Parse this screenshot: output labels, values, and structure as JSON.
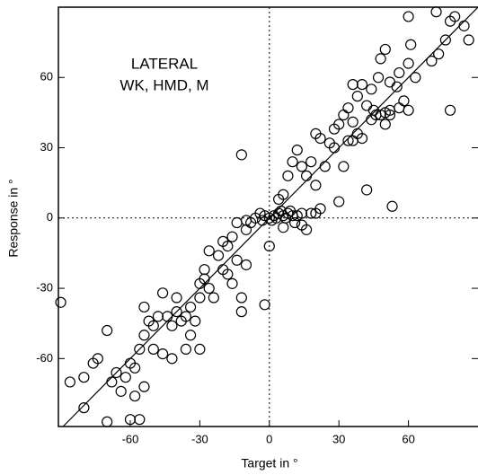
{
  "chart_data": {
    "type": "scatter",
    "annotation": [
      "LATERAL",
      "WK, HMD, M"
    ],
    "xlabel": "Target in °",
    "ylabel": "Response in °",
    "xlim": [
      -91,
      90
    ],
    "ylim": [
      -89,
      90
    ],
    "xticks": [
      -60,
      -30,
      0,
      30,
      60
    ],
    "yticks": [
      -60,
      -30,
      0,
      30,
      60
    ],
    "color": "#000000",
    "series": [
      {
        "x": [
          60,
          72,
          78,
          80,
          84,
          86,
          76,
          73,
          70,
          60,
          61,
          63,
          56,
          50,
          48,
          52,
          55,
          47,
          44,
          40,
          36,
          38,
          42,
          45,
          48,
          50,
          52,
          56,
          58,
          44,
          46,
          34,
          30,
          32,
          36,
          38,
          34,
          28,
          26,
          22,
          20,
          12,
          -12,
          36,
          40,
          50,
          52,
          60,
          78,
          53,
          42,
          30,
          32,
          28,
          24,
          18,
          14,
          10,
          20,
          16,
          8,
          6,
          4,
          22,
          18,
          14,
          20,
          0,
          -2,
          -10,
          0,
          2,
          4,
          6,
          8,
          10,
          3,
          5,
          7,
          -2,
          -4,
          -6,
          -8,
          -10,
          1,
          9,
          12,
          -3,
          11,
          14,
          16,
          6,
          -14,
          -16,
          -18,
          -20,
          -22,
          -20,
          -18,
          -16,
          -12,
          -12,
          -26,
          -28,
          -28,
          -30,
          -26,
          -24,
          -30,
          -34,
          -36,
          -38,
          -40,
          -42,
          -32,
          -34,
          -30,
          -44,
          -48,
          -50,
          -52,
          -54,
          -50,
          -46,
          -42,
          -56,
          -58,
          -60,
          -62,
          -66,
          -68,
          -64,
          -58,
          -54,
          -74,
          -76,
          -80,
          -86,
          -90,
          -70,
          -80,
          -70,
          -60,
          -56,
          -36,
          -40,
          -46,
          -54,
          -10,
          -14
        ],
        "values": [
          86,
          88,
          84,
          86,
          82,
          76,
          76,
          70,
          67,
          66,
          74,
          60,
          62,
          72,
          68,
          58,
          56,
          60,
          55,
          57,
          57,
          52,
          48,
          46,
          44,
          45,
          46,
          47,
          50,
          42,
          44,
          47,
          40,
          44,
          41,
          36,
          33,
          38,
          32,
          34,
          36,
          29,
          27,
          33,
          34,
          40,
          44,
          46,
          46,
          5,
          12,
          7,
          22,
          30,
          22,
          24,
          22,
          24,
          14,
          18,
          18,
          10,
          8,
          4,
          2,
          2,
          2,
          -12,
          -37,
          -1,
          0,
          1,
          2,
          1,
          2,
          1,
          0,
          3,
          0,
          1,
          2,
          0,
          -2,
          -5,
          -1,
          3,
          1,
          -1,
          -2,
          -3,
          -5,
          -4,
          -2,
          -8,
          -12,
          -10,
          -16,
          -22,
          -24,
          -28,
          -34,
          -40,
          -14,
          -22,
          -26,
          -28,
          -30,
          -34,
          -34,
          -38,
          -42,
          -44,
          -40,
          -46,
          -44,
          -50,
          -56,
          -42,
          -42,
          -46,
          -44,
          -50,
          -56,
          -58,
          -60,
          -56,
          -64,
          -62,
          -68,
          -66,
          -70,
          -74,
          -76,
          -72,
          -60,
          -62,
          -68,
          -70,
          -36,
          -48,
          -81,
          -87,
          -86,
          -86,
          -56,
          -34,
          -32,
          -38,
          -20,
          -18
        ]
      }
    ]
  }
}
